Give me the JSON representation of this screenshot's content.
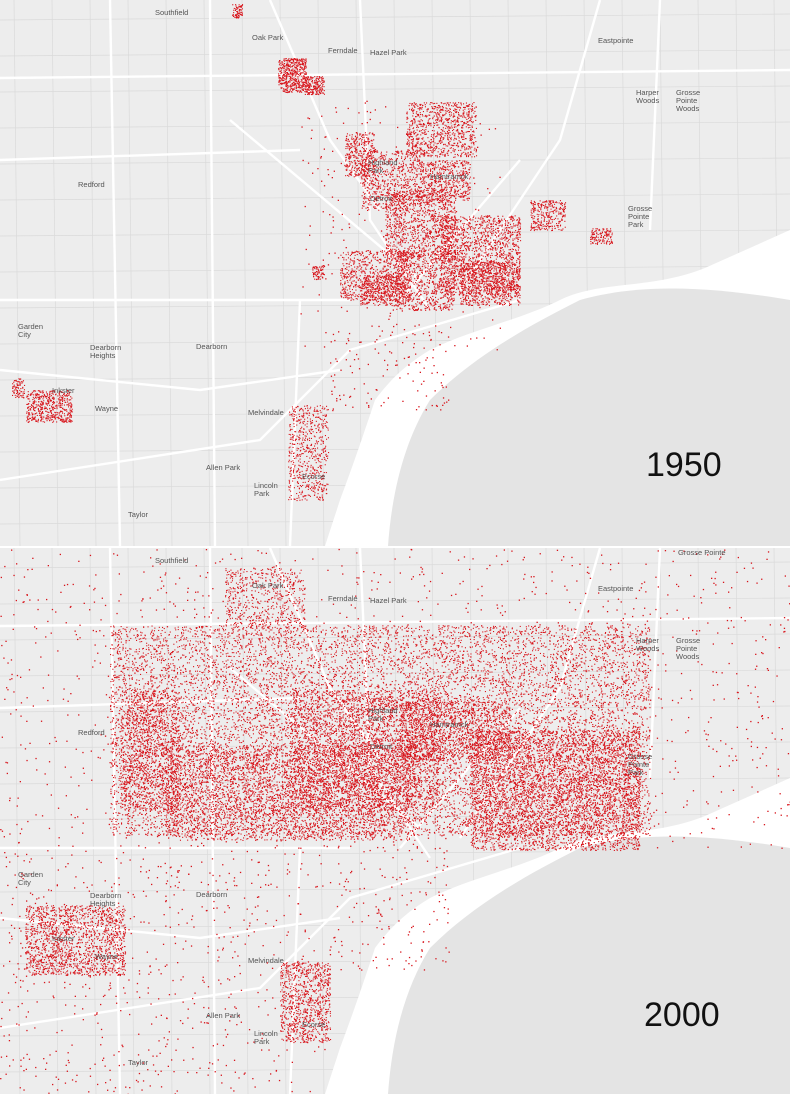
{
  "maps": [
    {
      "year": "1950",
      "places": [
        "Southfield",
        "Oak Park",
        "Ferndale",
        "Hazel Park",
        "Eastpointe",
        "Harper Woods",
        "Grosse Pointe Woods",
        "Redford",
        "Highland Park",
        "Hamtramck",
        "Detroit",
        "Grosse Pointe Park",
        "Garden City",
        "Dearborn Heights",
        "Dearborn",
        "Inkster",
        "Wayne",
        "Melvindale",
        "Allen Park",
        "Lincoln Park",
        "Ecorse",
        "Taylor"
      ]
    },
    {
      "year": "2000",
      "places": [
        "Southfield",
        "Oak Park",
        "Ferndale",
        "Hazel Park",
        "Eastpointe",
        "Harper Woods",
        "Grosse Pointe Woods",
        "Redford",
        "Highland Park",
        "Hamtramck",
        "Detroit",
        "Grosse Pointe Park",
        "Garden City",
        "Dearborn Heights",
        "Dearborn",
        "Inkster",
        "Wayne",
        "Melvindale",
        "Allen Park",
        "Lincoln Park",
        "Ecorse",
        "Taylor",
        "Grosse Pointe"
      ]
    }
  ],
  "colors": {
    "land": "#ededed",
    "water": "#ffffff",
    "lake": "#e4e4e4",
    "roads": "#ffffff",
    "minor_roads": "#dadada",
    "dots": "#d8141b"
  }
}
